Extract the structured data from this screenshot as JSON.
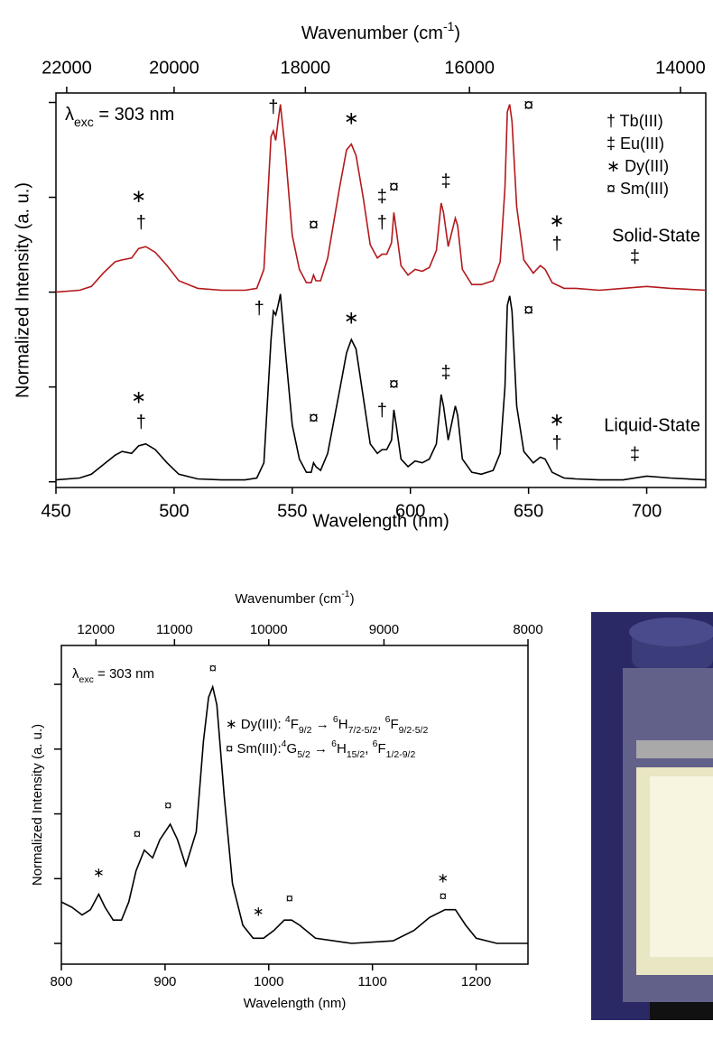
{
  "chart_data": [
    {
      "type": "line",
      "x2label": [
        {
          "text": "Wavenumber (cm"
        },
        {
          "text": "-1",
          "style": "sup"
        },
        {
          "text": ")"
        }
      ],
      "xlabel": "Wavelength (nm)",
      "ylabel": "Normalized Intensity (a. u.)",
      "note": [
        {
          "text": "λ"
        },
        {
          "text": "exc",
          "style": "sub"
        },
        {
          "text": " = 303 nm"
        }
      ],
      "xlim": [
        450,
        725
      ],
      "xticks": [
        450,
        500,
        550,
        600,
        650,
        700
      ],
      "x2ticks": [
        22000,
        20000,
        18000,
        16000,
        14000
      ],
      "ylim": [
        -0.03,
        2.05
      ],
      "yticks": [
        0,
        0.5,
        1,
        1.5,
        2
      ],
      "x": [
        450,
        460,
        465,
        470,
        475,
        478,
        482,
        485,
        488,
        492,
        497,
        502,
        510,
        520,
        530,
        535,
        538,
        541,
        542,
        543,
        544,
        545,
        547,
        550,
        553,
        556,
        558,
        559,
        560,
        562,
        565,
        570,
        573,
        575,
        577,
        580,
        583,
        586,
        588,
        590,
        592,
        593,
        594,
        596,
        599,
        602,
        605,
        608,
        611,
        613,
        614,
        616,
        619,
        620,
        622,
        626,
        630,
        635,
        638,
        640,
        641,
        642,
        643,
        645,
        648,
        652,
        655,
        657,
        660,
        665,
        670,
        680,
        690,
        700,
        710,
        725
      ],
      "series": [
        {
          "name": "Solid-State",
          "color": "#b3191c",
          "values": [
            1.0,
            1.01,
            1.03,
            1.1,
            1.16,
            1.17,
            1.18,
            1.23,
            1.24,
            1.21,
            1.14,
            1.06,
            1.02,
            1.01,
            1.01,
            1.02,
            1.12,
            1.82,
            1.85,
            1.8,
            1.9,
            1.99,
            1.75,
            1.3,
            1.12,
            1.05,
            1.05,
            1.09,
            1.06,
            1.06,
            1.18,
            1.55,
            1.75,
            1.78,
            1.72,
            1.5,
            1.25,
            1.18,
            1.2,
            1.2,
            1.26,
            1.42,
            1.33,
            1.14,
            1.09,
            1.12,
            1.11,
            1.13,
            1.22,
            1.47,
            1.42,
            1.24,
            1.39,
            1.35,
            1.12,
            1.04,
            1.04,
            1.06,
            1.16,
            1.55,
            1.95,
            1.99,
            1.9,
            1.45,
            1.17,
            1.1,
            1.14,
            1.12,
            1.05,
            1.02,
            1.02,
            1.01,
            1.02,
            1.03,
            1.02,
            1.01
          ]
        },
        {
          "name": "Liquid-State",
          "color": "#000000",
          "values": [
            0.01,
            0.02,
            0.04,
            0.09,
            0.14,
            0.16,
            0.15,
            0.19,
            0.2,
            0.17,
            0.1,
            0.04,
            0.015,
            0.01,
            0.01,
            0.02,
            0.1,
            0.75,
            0.9,
            0.88,
            0.93,
            0.99,
            0.7,
            0.3,
            0.12,
            0.05,
            0.05,
            0.1,
            0.08,
            0.06,
            0.15,
            0.48,
            0.68,
            0.75,
            0.7,
            0.45,
            0.2,
            0.15,
            0.17,
            0.17,
            0.22,
            0.38,
            0.3,
            0.12,
            0.08,
            0.11,
            0.1,
            0.12,
            0.2,
            0.46,
            0.4,
            0.22,
            0.4,
            0.35,
            0.12,
            0.05,
            0.04,
            0.06,
            0.15,
            0.5,
            0.93,
            0.98,
            0.9,
            0.4,
            0.16,
            0.1,
            0.13,
            0.12,
            0.05,
            0.02,
            0.015,
            0.01,
            0.01,
            0.03,
            0.02,
            0.01
          ]
        }
      ],
      "symbols": [
        {
          "text": "† Tb(III)",
          "color": "#1f9a1f"
        },
        {
          "text": "‡ Eu(III)",
          "color": "#e3211c"
        },
        {
          "text": "∗ Dy(III)",
          "color": "#a9a146"
        },
        {
          "text": "¤ Sm(III)",
          "color": "#c81fc8"
        }
      ],
      "annotations": [
        {
          "text": "∗",
          "color": "#a9a146",
          "x": 485,
          "y": 1.5
        },
        {
          "text": "†",
          "color": "#1f9a1f",
          "x": 486,
          "y": 1.36
        },
        {
          "text": "†",
          "color": "#1f9a1f",
          "x": 542,
          "y": 1.97
        },
        {
          "text": "∗",
          "color": "#a9a146",
          "x": 575,
          "y": 1.91
        },
        {
          "text": "¤",
          "color": "#c81fc8",
          "x": 559,
          "y": 1.35
        },
        {
          "text": "‡",
          "color": "#e3211c",
          "x": 588,
          "y": 1.5
        },
        {
          "text": "¤",
          "color": "#c81fc8",
          "x": 593,
          "y": 1.55
        },
        {
          "text": "†",
          "color": "#1f9a1f",
          "x": 588,
          "y": 1.36
        },
        {
          "text": "‡",
          "color": "#e3211c",
          "x": 615,
          "y": 1.58
        },
        {
          "text": "¤",
          "color": "#c81fc8",
          "x": 650,
          "y": 1.98
        },
        {
          "text": "∗",
          "color": "#a9a146",
          "x": 662,
          "y": 1.37
        },
        {
          "text": "†",
          "color": "#1f9a1f",
          "x": 662,
          "y": 1.25
        },
        {
          "text": "‡",
          "color": "#e3211c",
          "x": 695,
          "y": 1.18
        },
        {
          "text": "†",
          "color": "#1f9a1f",
          "x": 536,
          "y": 0.91
        },
        {
          "text": "∗",
          "color": "#a9a146",
          "x": 575,
          "y": 0.86
        },
        {
          "text": "¤",
          "color": "#c81fc8",
          "x": 559,
          "y": 0.33
        },
        {
          "text": "¤",
          "color": "#c81fc8",
          "x": 593,
          "y": 0.51
        },
        {
          "text": "†",
          "color": "#1f9a1f",
          "x": 588,
          "y": 0.37
        },
        {
          "text": "‡",
          "color": "#e3211c",
          "x": 615,
          "y": 0.57
        },
        {
          "text": "¤",
          "color": "#c81fc8",
          "x": 650,
          "y": 0.9
        },
        {
          "text": "∗",
          "color": "#a9a146",
          "x": 485,
          "y": 0.44
        },
        {
          "text": "†",
          "color": "#1f9a1f",
          "x": 486,
          "y": 0.31
        },
        {
          "text": "∗",
          "color": "#a9a146",
          "x": 662,
          "y": 0.32
        },
        {
          "text": "†",
          "color": "#1f9a1f",
          "x": 662,
          "y": 0.2
        },
        {
          "text": "‡",
          "color": "#e3211c",
          "x": 695,
          "y": 0.14
        }
      ]
    },
    {
      "type": "line",
      "x2label": [
        {
          "text": "Wavenumber (cm"
        },
        {
          "text": "-1",
          "style": "sup"
        },
        {
          "text": ")"
        }
      ],
      "xlabel": "Wavelength (nm)",
      "ylabel": "Normalized Intensity (a. u.)",
      "note": [
        {
          "text": "λ"
        },
        {
          "text": "exc",
          "style": "sub"
        },
        {
          "text": " = 303 nm"
        }
      ],
      "xlim": [
        800,
        1250
      ],
      "xticks": [
        800,
        900,
        1000,
        1100,
        1200
      ],
      "x2ticks": [
        12000,
        11000,
        10000,
        9000,
        8000
      ],
      "ylim": [
        -0.08,
        1.15
      ],
      "yticks": [
        0,
        0.25,
        0.5,
        0.75,
        1
      ],
      "x": [
        800,
        810,
        820,
        828,
        836,
        842,
        850,
        858,
        865,
        872,
        880,
        888,
        895,
        905,
        912,
        920,
        930,
        937,
        942,
        946,
        950,
        957,
        965,
        975,
        985,
        995,
        1005,
        1015,
        1022,
        1030,
        1045,
        1080,
        1120,
        1140,
        1155,
        1170,
        1180,
        1190,
        1200,
        1220,
        1250
      ],
      "color": "#000000",
      "values": [
        0.16,
        0.14,
        0.11,
        0.13,
        0.19,
        0.14,
        0.09,
        0.09,
        0.16,
        0.28,
        0.36,
        0.33,
        0.4,
        0.46,
        0.4,
        0.3,
        0.43,
        0.78,
        0.95,
        0.99,
        0.92,
        0.57,
        0.23,
        0.07,
        0.02,
        0.02,
        0.05,
        0.09,
        0.09,
        0.07,
        0.02,
        0,
        0.01,
        0.05,
        0.1,
        0.13,
        0.13,
        0.07,
        0.02,
        0,
        0
      ],
      "lines": [
        {
          "color": "#a9a146",
          "parts": [
            {
              "text": "∗ Dy(III): "
            },
            {
              "text": "4",
              "style": "sup"
            },
            {
              "text": "F"
            },
            {
              "text": "9/2",
              "style": "sub"
            },
            {
              "text": " → "
            },
            {
              "text": "6",
              "style": "sup"
            },
            {
              "text": "H"
            },
            {
              "text": "7/2-5/2",
              "style": "sub"
            },
            {
              "text": ", "
            },
            {
              "text": "6",
              "style": "sup"
            },
            {
              "text": "F"
            },
            {
              "text": "9/2-5/2",
              "style": "sub"
            }
          ]
        },
        {
          "color": "#c81fc8",
          "parts": [
            {
              "text": "¤ Sm(III):"
            },
            {
              "text": "4",
              "style": "sup"
            },
            {
              "text": "G"
            },
            {
              "text": "5/2",
              "style": "sub"
            },
            {
              "text": " → "
            },
            {
              "text": "6",
              "style": "sup"
            },
            {
              "text": "H"
            },
            {
              "text": "15/2",
              "style": "sub"
            },
            {
              "text": ", "
            },
            {
              "text": "6",
              "style": "sup"
            },
            {
              "text": "F"
            },
            {
              "text": "1/2-9/2",
              "style": "sub"
            }
          ]
        }
      ],
      "annotations": [
        {
          "text": "∗",
          "color": "#a9a146",
          "x": 836,
          "y": 0.27
        },
        {
          "text": "¤",
          "color": "#c81fc8",
          "x": 873,
          "y": 0.42
        },
        {
          "text": "¤",
          "color": "#c81fc8",
          "x": 903,
          "y": 0.53
        },
        {
          "text": "¤",
          "color": "#c81fc8",
          "x": 946,
          "y": 1.06
        },
        {
          "text": "∗",
          "color": "#a9a146",
          "x": 990,
          "y": 0.12
        },
        {
          "text": "¤",
          "color": "#c81fc8",
          "x": 1020,
          "y": 0.17
        },
        {
          "text": "∗",
          "color": "#a9a146",
          "x": 1168,
          "y": 0.25
        },
        {
          "text": "¤",
          "color": "#c81fc8",
          "x": 1168,
          "y": 0.18
        }
      ]
    }
  ]
}
